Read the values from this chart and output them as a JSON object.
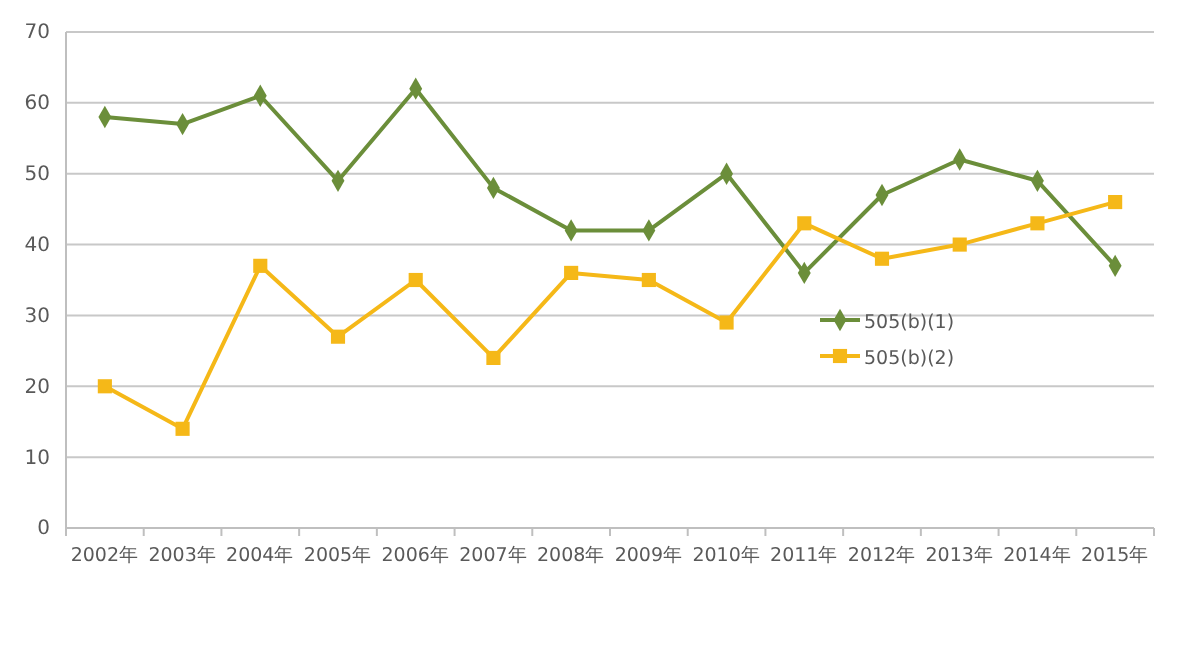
{
  "chart_data": {
    "type": "line",
    "categories": [
      "2002年",
      "2003年",
      "2004年",
      "2005年",
      "2006年",
      "2007年",
      "2008年",
      "2009年",
      "2010年",
      "2011年",
      "2012年",
      "2013年",
      "2014年",
      "2015年"
    ],
    "series": [
      {
        "name": "505(b)(1)",
        "color": "#6b8e3a",
        "marker": "diamond",
        "values": [
          58,
          57,
          61,
          49,
          62,
          48,
          42,
          42,
          50,
          36,
          47,
          52,
          49,
          37
        ]
      },
      {
        "name": "505(b)(2)",
        "color": "#f5b818",
        "marker": "square",
        "values": [
          20,
          14,
          37,
          27,
          35,
          24,
          36,
          35,
          29,
          43,
          38,
          40,
          43,
          46
        ]
      }
    ],
    "ylim": [
      0,
      70
    ],
    "yticks": [
      0,
      10,
      20,
      30,
      40,
      50,
      60,
      70
    ],
    "grid": "y",
    "legend": "right"
  }
}
